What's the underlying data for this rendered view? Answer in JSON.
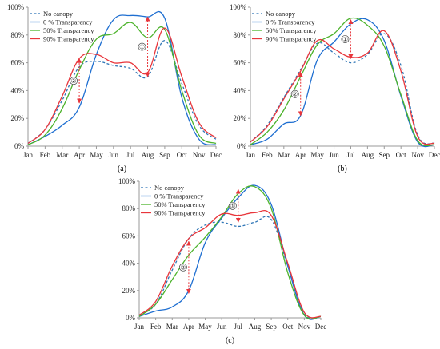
{
  "figure": {
    "series_styles": [
      {
        "color": "#2E75B6",
        "dash": "3,2.5"
      },
      {
        "color": "#1F6FD1",
        "dash": ""
      },
      {
        "color": "#4CB32B",
        "dash": ""
      },
      {
        "color": "#E8353B",
        "dash": ""
      }
    ],
    "annotation_color": "#E8353B",
    "axis_color": "#9a9a9a",
    "grid": false
  },
  "chart_data": [
    {
      "panel_label": "(a)",
      "type": "line",
      "x": [
        "Jan",
        "Feb",
        "Mar",
        "Apr",
        "May",
        "Jun",
        "Jul",
        "Aug",
        "Sep",
        "Oct",
        "Nov",
        "Dec"
      ],
      "xlabel": "",
      "ylabel": "",
      "ylim": [
        0,
        100
      ],
      "yticks": [
        "0%",
        "20%",
        "40%",
        "60%",
        "80%",
        "100%"
      ],
      "legend": "top-left",
      "series": [
        {
          "name": "No canopy",
          "values": [
            2,
            12,
            33,
            57,
            61,
            58,
            56,
            50,
            76,
            45,
            15,
            5
          ]
        },
        {
          "name": "0 % Transparency",
          "values": [
            1,
            7,
            15,
            28,
            66,
            91,
            94,
            93,
            92,
            35,
            5,
            1
          ]
        },
        {
          "name": "50% Transparency",
          "values": [
            1,
            8,
            27,
            55,
            77,
            81,
            89,
            78,
            84,
            40,
            8,
            2
          ]
        },
        {
          "name": "90% Transparency",
          "values": [
            2,
            12,
            36,
            63,
            66,
            60,
            60,
            53,
            85,
            50,
            17,
            6
          ]
        }
      ],
      "annotations": [
        {
          "label": "①",
          "month": "Aug",
          "from": 50,
          "to": 93
        },
        {
          "label": "②",
          "month": "Apr",
          "from": 31,
          "to": 63
        }
      ]
    },
    {
      "panel_label": "(b)",
      "type": "line",
      "x": [
        "Jan",
        "Feb",
        "Mar",
        "Apr",
        "May",
        "Jun",
        "Jul",
        "Aug",
        "Sep",
        "Oct",
        "Nov",
        "Dec"
      ],
      "xlabel": "",
      "ylabel": "",
      "ylim": [
        0,
        100
      ],
      "yticks": [
        "0%",
        "20%",
        "40%",
        "60%",
        "80%",
        "100%"
      ],
      "legend": "top-left",
      "series": [
        {
          "name": "No canopy",
          "values": [
            3,
            15,
            35,
            55,
            74,
            67,
            60,
            66,
            81,
            58,
            8,
            2
          ]
        },
        {
          "name": "0 % Transparency",
          "values": [
            1,
            5,
            16,
            22,
            62,
            75,
            88,
            91,
            76,
            36,
            3,
            1
          ]
        },
        {
          "name": "50% Transparency",
          "values": [
            1,
            10,
            26,
            50,
            73,
            81,
            92,
            87,
            72,
            37,
            4,
            1
          ]
        },
        {
          "name": "90% Transparency",
          "values": [
            3,
            14,
            34,
            54,
            76,
            70,
            64,
            67,
            83,
            54,
            7,
            2
          ]
        }
      ],
      "annotations": [
        {
          "label": "①",
          "month": "Jul",
          "from": 63,
          "to": 91
        },
        {
          "label": "②",
          "month": "Apr",
          "from": 22,
          "to": 53
        }
      ]
    },
    {
      "panel_label": "(c)",
      "type": "line",
      "x": [
        "Jan",
        "Feb",
        "Mar",
        "Apr",
        "May",
        "Jun",
        "Jul",
        "Aug",
        "Sep",
        "Oct",
        "Nov",
        "Dec"
      ],
      "xlabel": "",
      "ylabel": "",
      "ylim": [
        0,
        100
      ],
      "yticks": [
        "0%",
        "20%",
        "40%",
        "60%",
        "80%",
        "100%"
      ],
      "legend": "top-left",
      "series": [
        {
          "name": "No canopy",
          "values": [
            2,
            10,
            35,
            58,
            68,
            70,
            67,
            70,
            72,
            38,
            3,
            1
          ]
        },
        {
          "name": "0 % Transparency",
          "values": [
            1,
            5,
            8,
            20,
            55,
            73,
            88,
            97,
            83,
            38,
            2,
            1
          ]
        },
        {
          "name": "50% Transparency",
          "values": [
            1,
            10,
            28,
            46,
            59,
            74,
            91,
            96,
            80,
            33,
            2,
            1
          ]
        },
        {
          "name": "90% Transparency",
          "values": [
            2,
            12,
            38,
            58,
            66,
            76,
            75,
            77,
            75,
            40,
            4,
            1
          ]
        }
      ],
      "annotations": [
        {
          "label": "①",
          "month": "Jul",
          "from": 70,
          "to": 94
        },
        {
          "label": "②",
          "month": "Apr",
          "from": 18,
          "to": 56
        }
      ]
    }
  ]
}
